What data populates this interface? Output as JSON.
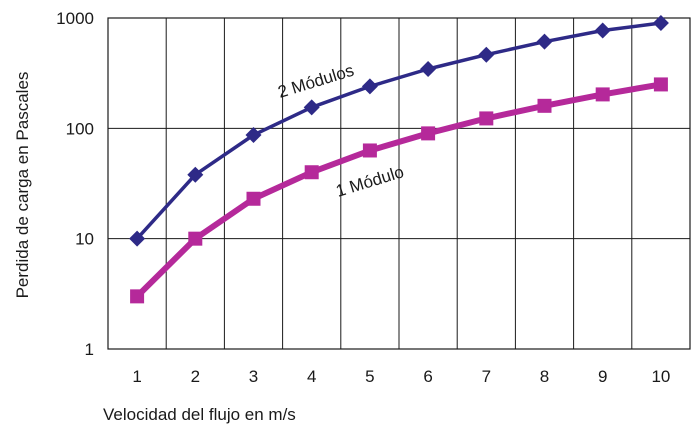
{
  "chart_data": {
    "type": "line",
    "title": "",
    "xlabel": "Velocidad del flujo en m/s",
    "ylabel": "Perdida de carga en Pascales",
    "x": [
      1,
      2,
      3,
      4,
      5,
      6,
      7,
      8,
      9,
      10
    ],
    "x_tick_labels": [
      "1",
      "2",
      "3",
      "4",
      "5",
      "6",
      "7",
      "8",
      "9",
      "10"
    ],
    "y_scale": "log",
    "ylim": [
      1,
      1000
    ],
    "y_tick_labels": [
      "1",
      "10",
      "100",
      "1000"
    ],
    "grid": true,
    "legend": "none",
    "series": [
      {
        "name": "2 Módulos",
        "values": [
          10,
          38,
          87,
          155,
          240,
          345,
          465,
          610,
          770,
          900
        ],
        "color": "#2e2a87",
        "marker": "diamond"
      },
      {
        "name": "1 Módulo",
        "values": [
          3,
          10,
          23,
          40,
          63,
          90,
          123,
          160,
          203,
          250
        ],
        "color": "#b5299a",
        "marker": "square"
      }
    ]
  }
}
